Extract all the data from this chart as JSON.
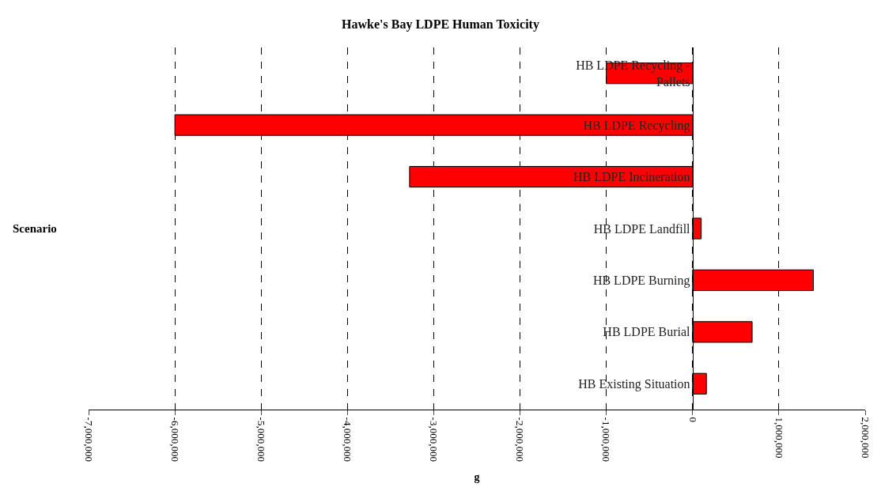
{
  "chart_data": {
    "type": "bar",
    "orientation": "horizontal",
    "title": "Hawke's Bay LDPE Human Toxicity",
    "xlabel": "g",
    "ylabel": "Scenario",
    "categories": [
      "HB LDPE Recycling - Pallets",
      "HB LDPE Recycling",
      "HB LDPE Incineration",
      "HB LDPE Landfill",
      "HB LDPE Burning",
      "HB LDPE Burial",
      "HB Existing Situation"
    ],
    "values": [
      -1000000,
      -6000000,
      -3280000,
      100000,
      1400000,
      690000,
      160000
    ],
    "color": "#ff0000",
    "xlim": [
      -7000000,
      2000000
    ],
    "xticks": [
      {
        "value": -7000000,
        "label": "-7,000,000"
      },
      {
        "value": -6000000,
        "label": "-6,000,000"
      },
      {
        "value": -5000000,
        "label": "-5,000,000"
      },
      {
        "value": -4000000,
        "label": "-4,000,000"
      },
      {
        "value": -3000000,
        "label": "-3,000,000"
      },
      {
        "value": -2000000,
        "label": "-2,000,000"
      },
      {
        "value": -1000000,
        "label": "-1,000,000"
      },
      0,
      {
        "value": 1000000,
        "label": "1,000,000"
      },
      {
        "value": 2000000,
        "label": "2,000,000"
      }
    ],
    "grid": "x",
    "legend": false
  }
}
